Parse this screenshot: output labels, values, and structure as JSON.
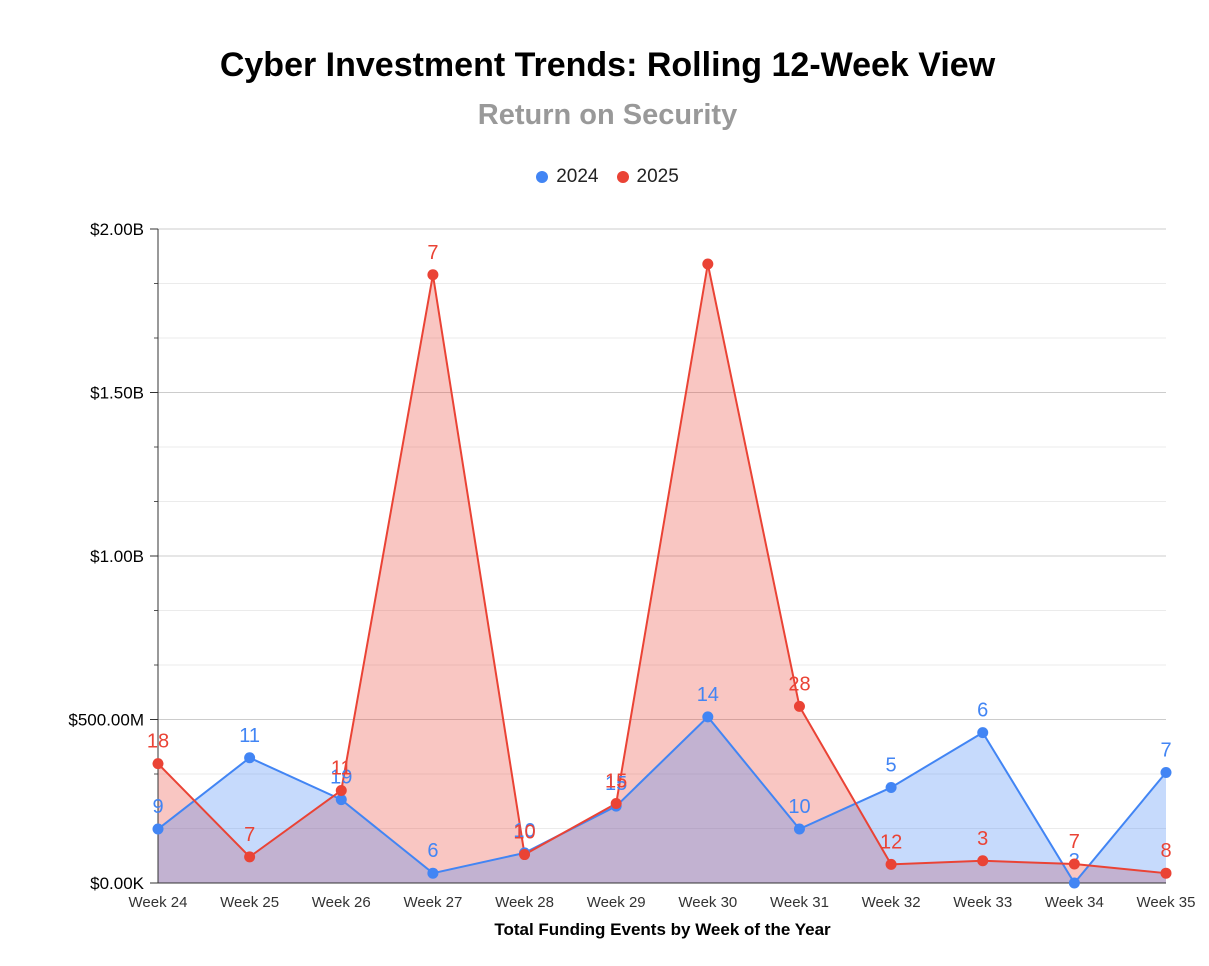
{
  "header": {
    "title": "Cyber Investment Trends: Rolling 12-Week View",
    "subtitle": "Return on Security"
  },
  "colors": {
    "series_2024": "#4285f4",
    "series_2025": "#ea4335",
    "fill_2024": "#4285f4",
    "fill_2025": "#ea4335"
  },
  "chart_data": {
    "type": "area",
    "title": "Cyber Investment Trends: Rolling 12-Week View",
    "subtitle": "Return on Security",
    "xlabel": "Total Funding Events by Week of the Year",
    "ylabel": "",
    "ylim": [
      0,
      2000000000
    ],
    "yticks": [
      {
        "value": 0,
        "label": "$0.00K"
      },
      {
        "value": 500000000,
        "label": "$500.00M"
      },
      {
        "value": 1000000000,
        "label": "$1.00B"
      },
      {
        "value": 1500000000,
        "label": "$1.50B"
      },
      {
        "value": 2000000000,
        "label": "$2.00B"
      }
    ],
    "categories": [
      "Week 24",
      "Week 25",
      "Week 26",
      "Week 27",
      "Week 28",
      "Week 29",
      "Week 30",
      "Week 31",
      "Week 32",
      "Week 33",
      "Week 34",
      "Week 35"
    ],
    "legend_position": "top-center",
    "series": [
      {
        "name": "2024",
        "values": [
          165000000,
          383000000,
          255000000,
          30000000,
          92000000,
          235000000,
          508000000,
          165000000,
          292000000,
          460000000,
          0,
          338000000
        ],
        "labels": [
          "9",
          "11",
          "19",
          "6",
          "10",
          "15",
          "14",
          "10",
          "5",
          "6",
          "3",
          "7"
        ]
      },
      {
        "name": "2025",
        "values": [
          365000000,
          80000000,
          283000000,
          1860000000,
          87000000,
          243000000,
          1893000000,
          540000000,
          57000000,
          68000000,
          58000000,
          30000000
        ],
        "labels": [
          "18",
          "7",
          "11",
          "7",
          "10",
          "15",
          "",
          "28",
          "12",
          "3",
          "7",
          "8"
        ]
      }
    ]
  }
}
